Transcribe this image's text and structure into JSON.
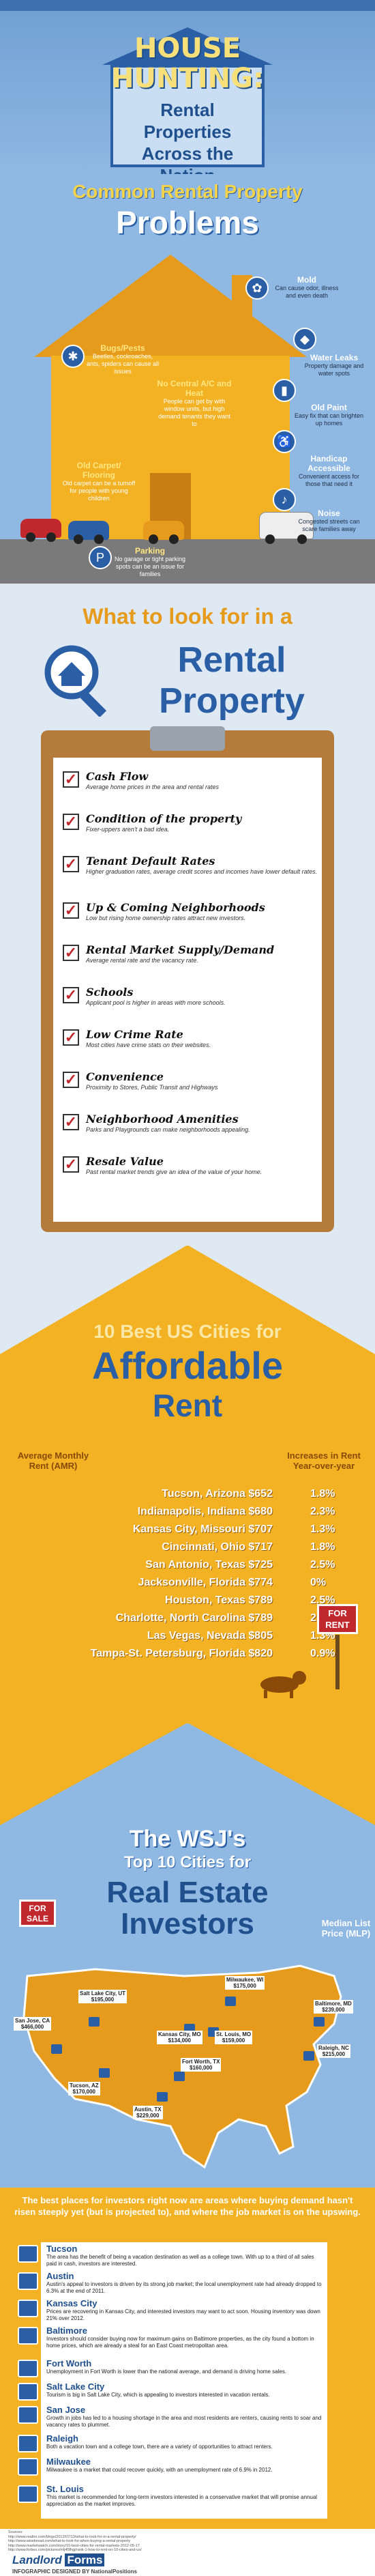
{
  "header": {
    "line1": "HOUSE",
    "line2": "HUNTING:",
    "subtitle": "Rental Properties Across the Nation"
  },
  "problems": {
    "heading1": "Common Rental Property",
    "heading2": "Problems",
    "items": [
      {
        "title": "Mold",
        "text": "Can cause odor, illness and even death"
      },
      {
        "title": "Bugs/Pests",
        "text": "Beetles, cockroaches, ants, spiders can cause all issues"
      },
      {
        "title": "Water Leaks",
        "text": "Property damage and water spots"
      },
      {
        "title": "No Central A/C and Heat",
        "text": "People can get by with window units, but high demand tenants they want to"
      },
      {
        "title": "Old Paint",
        "text": "Easy fix that can brighten up homes"
      },
      {
        "title": "Handicap Accessible",
        "text": "Convenient access for those that need it"
      },
      {
        "title": "Old Carpet/ Flooring",
        "text": "Old carpet can be a turnoff for people with young children"
      },
      {
        "title": "Noise",
        "text": "Congested streets can scare families away"
      },
      {
        "title": "Parking",
        "text": "No garage or tight parking spots can be an issue for families"
      }
    ]
  },
  "checklist": {
    "heading1": "What to look for in a",
    "heading2": "Rental Property",
    "items": [
      {
        "title": "Cash Flow",
        "text": "Average home prices in the area and rental rates"
      },
      {
        "title": "Condition of the property",
        "text": "Fixer-uppers aren't a bad idea."
      },
      {
        "title": "Tenant Default Rates",
        "text": "Higher graduation rates, average credit scores and incomes have lower default rates."
      },
      {
        "title": "Up & Coming Neighborhoods",
        "text": "Low but rising home ownership rates attract new investors."
      },
      {
        "title": "Rental Market Supply/Demand",
        "text": "Average rental rate and the vacancy rate."
      },
      {
        "title": "Schools",
        "text": "Applicant pool is higher in areas with more schools."
      },
      {
        "title": "Low Crime Rate",
        "text": "Most cities have crime stats on their websites."
      },
      {
        "title": "Convenience",
        "text": "Proximity to Stores, Public Transit and Highways"
      },
      {
        "title": "Neighborhood Amenities",
        "text": "Parks and Playgrounds can make neighborhoods appealing."
      },
      {
        "title": "Resale Value",
        "text": "Past rental market trends give an idea of the value of your home."
      }
    ]
  },
  "rent": {
    "heading1": "10 Best US Cities for",
    "heading2": "Affordable",
    "heading3": "Rent",
    "col_left": "Average Monthly Rent (AMR)",
    "col_right": "Increases in Rent Year-over-year",
    "rows": [
      {
        "city": "Tucson, Arizona $652",
        "pct": "1.8%"
      },
      {
        "city": "Indianapolis, Indiana $680",
        "pct": "2.3%"
      },
      {
        "city": "Kansas City, Missouri $707",
        "pct": "1.3%"
      },
      {
        "city": "Cincinnati, Ohio $717",
        "pct": "1.8%"
      },
      {
        "city": "San Antonio, Texas $725",
        "pct": "2.5%"
      },
      {
        "city": "Jacksonville, Florida $774",
        "pct": "0%"
      },
      {
        "city": "Houston, Texas $789",
        "pct": "2.5%"
      },
      {
        "city": "Charlotte, North Carolina $789",
        "pct": "2.2%"
      },
      {
        "city": "Las Vegas, Nevada $805",
        "pct": "1.3%"
      },
      {
        "city": "Tampa-St. Petersburg, Florida $820",
        "pct": "0.9%"
      }
    ],
    "sign": "FOR RENT"
  },
  "investors": {
    "heading1": "The WSJ's",
    "heading2": "Top 10 Cities for",
    "heading3": "Real Estate",
    "heading4": "Investors",
    "mlp": "Median List Price (MLP)",
    "sign": "FOR SALE",
    "cities": [
      {
        "name": "San Jose, CA",
        "price": "$466,000"
      },
      {
        "name": "Salt Lake City, UT",
        "price": "$195,000"
      },
      {
        "name": "Tucson, AZ",
        "price": "$170,000"
      },
      {
        "name": "Austin, TX",
        "price": "$229,000"
      },
      {
        "name": "Kansas City, MO",
        "price": "$134,000"
      },
      {
        "name": "Fort Worth, TX",
        "price": "$160,000"
      },
      {
        "name": "St. Louis, MO",
        "price": "$159,000"
      },
      {
        "name": "Milwaukee, WI",
        "price": "$175,000"
      },
      {
        "name": "Baltimore, MD",
        "price": "$239,000"
      },
      {
        "name": "Raleigh, NC",
        "price": "$215,000"
      }
    ]
  },
  "places": {
    "intro": "The best places for investors right now are areas where buying demand hasn't risen steeply yet (but is projected to), and where the job market is on the upswing.",
    "items": [
      {
        "name": "Tucson",
        "text": "The area has the benefit of being a vacation destination as well as a college town. With up to a third of all sales paid in cash, investors are interested."
      },
      {
        "name": "Austin",
        "text": "Austin's appeal to investors is driven by its strong job market; the local unemployment rate had already dropped to 6.3% at the end of 2011."
      },
      {
        "name": "Kansas City",
        "text": "Prices are recovering in Kansas City, and interested investors may want to act soon. Housing inventory was down 21% over 2012."
      },
      {
        "name": "Baltimore",
        "text": "Investors should consider buying now for maximum gains on Baltimore properties, as the city found a bottom in home prices, which are already a steal for an East Coast metropolitan area."
      },
      {
        "name": "Fort Worth",
        "text": "Unemployment in Fort Worth is lower than the national average, and demand is driving home sales."
      },
      {
        "name": "Salt Lake City",
        "text": "Tourism is big in Salt Lake City, which is appealing to investors interested in vacation rentals."
      },
      {
        "name": "San Jose",
        "text": "Growth in jobs has led to a housing shortage in the area and most residents are renters, causing rents to soar and vacancy rates to plummet."
      },
      {
        "name": "Raleigh",
        "text": "Both a vacation town and a college town, there are a variety of opportunities to attract renters."
      },
      {
        "name": "Milwaukee",
        "text": "Milwaukee is a market that could recover quickly, with an unemployment rate of 6.9% in 2012."
      },
      {
        "name": "St. Louis",
        "text": "This market is recommended for long-term investors interested in a conservative market that will promise annual appreciation as the market improves."
      }
    ]
  },
  "footer": {
    "sources_label": "Sources:",
    "sources": [
      "http://www.realtor.com/blogs/2012/07/13/what-to-look-for-in-a-rental-property/",
      "http://www.wisebread.com/what-to-look-for-when-buying-a-rental-property",
      "http://www.marketwatch.com/story/10-best-cities-for-rental-markets-2012-05-17",
      "http://www.forbes.com/pictures/mlj45fhgj/rank-1-how-to-rent-on-10-cities-and-us/"
    ],
    "designed_by": "INFOGRAPHIC DESIGNED BY",
    "logo_left": "Landlord",
    "logo_right": "Forms",
    "credit": "NationalPositions"
  }
}
